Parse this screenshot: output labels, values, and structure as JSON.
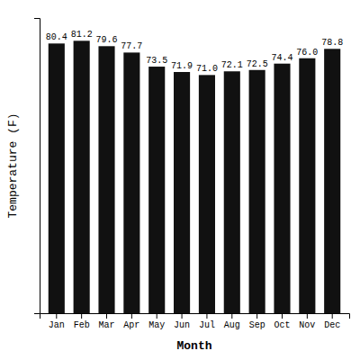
{
  "chart_data": {
    "type": "bar",
    "categories": [
      "Jan",
      "Feb",
      "Mar",
      "Apr",
      "May",
      "Jun",
      "Jul",
      "Aug",
      "Sep",
      "Oct",
      "Nov",
      "Dec"
    ],
    "values": [
      80.4,
      81.2,
      79.6,
      77.7,
      73.5,
      71.9,
      71.0,
      72.1,
      72.5,
      74.4,
      76.0,
      78.8
    ],
    "value_labels": [
      "80.4",
      "81.2",
      "79.6",
      "77.7",
      "73.5",
      "71.9",
      "71.0",
      "72.1",
      "72.5",
      "74.4",
      "76.0",
      "78.8"
    ],
    "color": "#111111",
    "xlabel": "Month",
    "ylabel": "Temperature (F)",
    "ylim": [
      0,
      88
    ],
    "data_labels": true,
    "tick_labels": "x"
  }
}
